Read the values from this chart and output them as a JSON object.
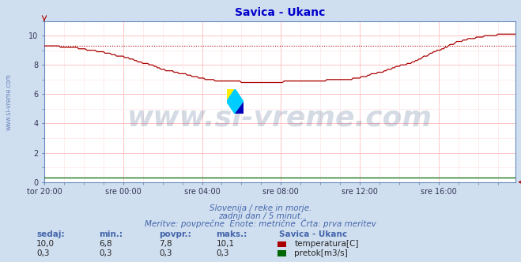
{
  "title": "Savica - Ukanc",
  "title_color": "#0000cc",
  "bg_color": "#d0dff0",
  "plot_bg_color": "#ffffff",
  "grid_color_major": "#ffbbbb",
  "grid_color_minor": "#ffdddd",
  "xlabel_ticks": [
    "tor 20:00",
    "sre 00:00",
    "sre 04:00",
    "sre 08:00",
    "sre 12:00",
    "sre 16:00"
  ],
  "ylabel_ticks": [
    0,
    2,
    4,
    6,
    8,
    10
  ],
  "ylim": [
    0,
    11.0
  ],
  "xlim": [
    0,
    287
  ],
  "temp_avg_line": 9.3,
  "temp_color": "#aa0000",
  "flow_color": "#006600",
  "watermark_text": "www.si-vreme.com",
  "watermark_color": "#1a3a6a",
  "watermark_alpha": 0.18,
  "watermark_fontsize": 26,
  "footer_line1": "Slovenija / reke in morje.",
  "footer_line2": "zadnji dan / 5 minut.",
  "footer_line3": "Meritve: povprečne  Enote: metrične  Črta: prva meritev",
  "footer_color": "#4466aa",
  "table_headers": [
    "sedaj:",
    "min.:",
    "povpr.:",
    "maks.:"
  ],
  "table_data_temp": [
    "10,0",
    "6,8",
    "7,8",
    "10,1"
  ],
  "table_data_flow": [
    "0,3",
    "0,3",
    "0,3",
    "0,3"
  ],
  "legend_title": "Savica - Ukanc",
  "legend_temp_label": "temperatura[C]",
  "legend_flow_label": "pretok[m3/s]",
  "ylabel_watermark": "www.si-vreme.com",
  "ylabel_color": "#4466aa",
  "axis_color": "#6688bb",
  "tick_color": "#333355"
}
